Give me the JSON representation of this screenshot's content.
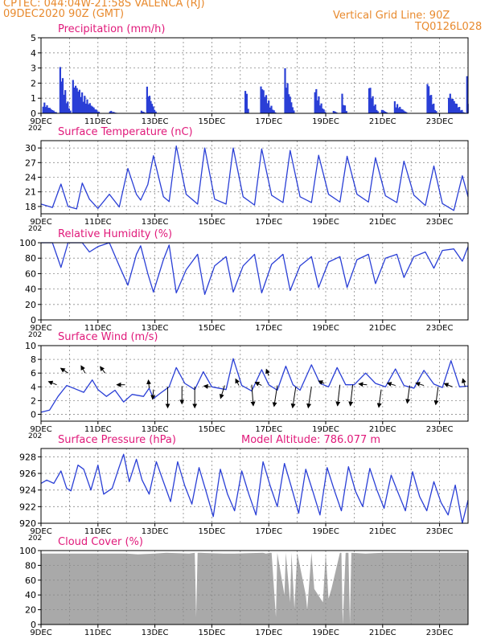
{
  "header": {
    "station": "CPTEC:  044:04W-21:58S  VALENCA (RJ)",
    "date": "09DEC2020 90Z (GMT)",
    "grid_note": "Vertical Grid Line: 90Z",
    "code": "TQ0126L028"
  },
  "colors": {
    "header": "#e88a2e",
    "title": "#e0197a",
    "series": "#2a3fd6",
    "cloud": "#a9a9a9",
    "grid": "#8a8a8a"
  },
  "x_ticks": [
    "9DEC",
    "11DEC",
    "13DEC",
    "15DEC",
    "17DEC",
    "19DEC",
    "21DEC",
    "23DEC"
  ],
  "x_ticks_tick_days": [
    9,
    11,
    13,
    15,
    17,
    19,
    21,
    23
  ],
  "x_range_days": [
    9,
    24.0
  ],
  "cut_label": "202",
  "chart_data": [
    {
      "type": "bar",
      "title": "Precipitation (mm/h)",
      "ylim": [
        0,
        5
      ],
      "yticks": [
        0,
        1,
        2,
        3,
        4,
        5
      ],
      "bursts": [
        {
          "x": [
            9.05,
            9.6
          ],
          "peak": 0.8
        },
        {
          "x": [
            9.65,
            10.05
          ],
          "peak": 3.3
        },
        {
          "x": [
            10.1,
            11.1
          ],
          "peak": 2.3
        },
        {
          "x": [
            11.4,
            11.7
          ],
          "peak": 0.2
        },
        {
          "x": [
            12.5,
            12.7
          ],
          "peak": 0.2
        },
        {
          "x": [
            12.7,
            13.05
          ],
          "peak": 1.8
        },
        {
          "x": [
            16.15,
            16.3
          ],
          "peak": 2.2
        },
        {
          "x": [
            16.7,
            17.25
          ],
          "peak": 2.1
        },
        {
          "x": [
            17.55,
            17.9
          ],
          "peak": 3.0
        },
        {
          "x": [
            18.6,
            19.0
          ],
          "peak": 1.9
        },
        {
          "x": [
            19.25,
            19.45
          ],
          "peak": 0.2
        },
        {
          "x": [
            19.55,
            19.75
          ],
          "peak": 1.3
        },
        {
          "x": [
            20.5,
            20.85
          ],
          "peak": 2.1
        },
        {
          "x": [
            20.95,
            21.2
          ],
          "peak": 0.3
        },
        {
          "x": [
            21.4,
            21.9
          ],
          "peak": 0.8
        },
        {
          "x": [
            22.55,
            22.9
          ],
          "peak": 2.3
        },
        {
          "x": [
            23.3,
            23.9
          ],
          "peak": 1.5
        },
        {
          "x": [
            23.95,
            24.0
          ],
          "peak": 2.5
        }
      ]
    },
    {
      "type": "line",
      "title": "Surface Temperature (nC)",
      "ylim": [
        16.5,
        31.5
      ],
      "yticks": [
        18,
        21,
        24,
        27,
        30
      ],
      "x": [
        9.0,
        9.4,
        9.7,
        9.95,
        10.25,
        10.45,
        10.7,
        11.0,
        11.4,
        11.75,
        12.05,
        12.35,
        12.5,
        12.75,
        12.95,
        13.3,
        13.5,
        13.75,
        14.1,
        14.5,
        14.75,
        15.1,
        15.5,
        15.75,
        16.1,
        16.5,
        16.75,
        17.1,
        17.5,
        17.75,
        18.1,
        18.5,
        18.75,
        19.1,
        19.5,
        19.75,
        20.1,
        20.5,
        20.75,
        21.1,
        21.5,
        21.75,
        22.1,
        22.5,
        22.8,
        23.1,
        23.5,
        23.8,
        24.0
      ],
      "values": [
        18.5,
        17.8,
        22.6,
        18.0,
        17.5,
        22.8,
        19.5,
        17.6,
        20.5,
        17.9,
        25.8,
        20.5,
        19.3,
        22.5,
        28.4,
        20.0,
        19.0,
        30.4,
        20.5,
        18.5,
        30.0,
        19.5,
        18.5,
        30.0,
        20.0,
        18.3,
        29.8,
        20.3,
        18.8,
        29.5,
        20.0,
        18.8,
        28.5,
        20.5,
        18.9,
        28.3,
        20.5,
        18.9,
        28.0,
        20.2,
        18.8,
        27.3,
        20.3,
        18.2,
        26.3,
        18.6,
        17.2,
        24.3,
        20.0
      ]
    },
    {
      "type": "line",
      "title": "Relative Humidity (%)",
      "ylim": [
        0,
        100
      ],
      "yticks": [
        0,
        20,
        40,
        60,
        80,
        100
      ],
      "x": [
        9.0,
        9.4,
        9.7,
        9.95,
        10.25,
        10.45,
        10.7,
        11.0,
        11.4,
        11.75,
        12.05,
        12.35,
        12.5,
        12.75,
        12.95,
        13.3,
        13.5,
        13.75,
        14.1,
        14.5,
        14.75,
        15.1,
        15.5,
        15.75,
        16.1,
        16.5,
        16.75,
        17.1,
        17.5,
        17.75,
        18.1,
        18.5,
        18.75,
        19.1,
        19.5,
        19.75,
        20.1,
        20.5,
        20.75,
        21.1,
        21.5,
        21.75,
        22.1,
        22.5,
        22.8,
        23.1,
        23.5,
        23.8,
        24.0
      ],
      "values": [
        100,
        100,
        68,
        100,
        100,
        100,
        88,
        95,
        100,
        70,
        45,
        85,
        96,
        60,
        36,
        78,
        97,
        35,
        65,
        85,
        33,
        70,
        82,
        36,
        70,
        85,
        35,
        72,
        85,
        38,
        70,
        82,
        42,
        75,
        82,
        42,
        78,
        85,
        47,
        80,
        85,
        55,
        82,
        88,
        67,
        90,
        92,
        76,
        95
      ]
    },
    {
      "type": "line",
      "title": "Surface Wind (m/s)",
      "ylim": [
        -1,
        10
      ],
      "yticks": [
        0,
        2,
        4,
        6,
        8,
        10
      ],
      "x": [
        9.0,
        9.3,
        9.6,
        9.9,
        10.2,
        10.5,
        10.8,
        11.0,
        11.3,
        11.6,
        11.9,
        12.2,
        12.6,
        12.8,
        12.95,
        13.2,
        13.5,
        13.75,
        14.05,
        14.4,
        14.7,
        15.0,
        15.5,
        15.75,
        16.05,
        16.4,
        16.75,
        17.0,
        17.3,
        17.6,
        17.85,
        18.1,
        18.5,
        18.8,
        19.1,
        19.4,
        19.7,
        20.0,
        20.4,
        20.75,
        21.1,
        21.45,
        21.75,
        22.1,
        22.45,
        22.8,
        23.1,
        23.4,
        23.7,
        24.0
      ],
      "values": [
        0.3,
        0.6,
        2.6,
        4.2,
        3.7,
        3.2,
        5.0,
        3.6,
        2.6,
        3.5,
        1.8,
        2.9,
        2.6,
        3.8,
        2.3,
        3.1,
        4.0,
        6.8,
        4.5,
        3.6,
        6.2,
        4.0,
        3.6,
        8.1,
        4.2,
        3.4,
        6.5,
        4.3,
        3.5,
        7.0,
        4.3,
        3.5,
        7.2,
        4.5,
        4.0,
        6.8,
        4.3,
        4.3,
        6.0,
        4.5,
        4.0,
        6.6,
        4.2,
        3.8,
        6.4,
        4.4,
        3.9,
        7.8,
        4.0,
        4.1
      ],
      "arrows": [
        {
          "x": 9.55,
          "y": 4.3,
          "dx": -10,
          "dy": -4
        },
        {
          "x": 9.95,
          "y": 6.0,
          "dx": -9,
          "dy": -6
        },
        {
          "x": 10.55,
          "y": 6.0,
          "dx": -5,
          "dy": -9
        },
        {
          "x": 11.25,
          "y": 6.0,
          "dx": -6,
          "dy": -8
        },
        {
          "x": 11.95,
          "y": 4.3,
          "dx": -10,
          "dy": 0
        },
        {
          "x": 12.8,
          "y": 3.8,
          "dx": -1,
          "dy": -10
        },
        {
          "x": 12.95,
          "y": 3.6,
          "dx": -1,
          "dy": 12
        },
        {
          "x": 13.45,
          "y": 4.0,
          "dx": 0,
          "dy": 26
        },
        {
          "x": 13.95,
          "y": 4.1,
          "dx": 0,
          "dy": 22
        },
        {
          "x": 14.4,
          "y": 4.0,
          "dx": 0,
          "dy": 26
        },
        {
          "x": 14.95,
          "y": 4.0,
          "dx": -8,
          "dy": -1
        },
        {
          "x": 15.45,
          "y": 4.2,
          "dx": -5,
          "dy": 16
        },
        {
          "x": 15.95,
          "y": 4.2,
          "dx": -4,
          "dy": -8
        },
        {
          "x": 16.4,
          "y": 4.3,
          "dx": 2,
          "dy": 26
        },
        {
          "x": 16.75,
          "y": 4.2,
          "dx": -8,
          "dy": -4
        },
        {
          "x": 17.0,
          "y": 5.6,
          "dx": -3,
          "dy": -8
        },
        {
          "x": 17.3,
          "y": 4.2,
          "dx": -4,
          "dy": 26
        },
        {
          "x": 17.95,
          "y": 4.0,
          "dx": -4,
          "dy": 26
        },
        {
          "x": 18.5,
          "y": 4.0,
          "dx": -4,
          "dy": 26
        },
        {
          "x": 18.95,
          "y": 4.5,
          "dx": -7,
          "dy": -3
        },
        {
          "x": 19.5,
          "y": 4.3,
          "dx": -3,
          "dy": 26
        },
        {
          "x": 19.95,
          "y": 4.3,
          "dx": -3,
          "dy": 26
        },
        {
          "x": 20.45,
          "y": 4.3,
          "dx": -10,
          "dy": -1
        },
        {
          "x": 20.95,
          "y": 3.6,
          "dx": -3,
          "dy": 22
        },
        {
          "x": 21.45,
          "y": 4.2,
          "dx": -10,
          "dy": -3
        },
        {
          "x": 21.95,
          "y": 4.2,
          "dx": -3,
          "dy": 22
        },
        {
          "x": 22.45,
          "y": 4.2,
          "dx": -10,
          "dy": -3
        },
        {
          "x": 22.95,
          "y": 4.0,
          "dx": -3,
          "dy": 22
        },
        {
          "x": 23.45,
          "y": 4.0,
          "dx": -10,
          "dy": -4
        },
        {
          "x": 23.9,
          "y": 4.0,
          "dx": -3,
          "dy": -10
        }
      ]
    },
    {
      "type": "line",
      "title": "Surface Pressure (hPa)",
      "subtitle": "Model Altitude: 786.077  m",
      "ylim": [
        920,
        929
      ],
      "yticks": [
        920,
        922,
        924,
        926,
        928
      ],
      "x": [
        9.0,
        9.2,
        9.45,
        9.7,
        9.9,
        10.05,
        10.3,
        10.5,
        10.75,
        11.0,
        11.2,
        11.5,
        11.75,
        11.9,
        12.1,
        12.35,
        12.55,
        12.8,
        13.05,
        13.3,
        13.55,
        13.8,
        14.05,
        14.3,
        14.55,
        14.8,
        15.05,
        15.3,
        15.55,
        15.8,
        16.05,
        16.3,
        16.55,
        16.8,
        17.05,
        17.3,
        17.55,
        17.8,
        18.05,
        18.3,
        18.55,
        18.8,
        19.05,
        19.3,
        19.55,
        19.8,
        20.05,
        20.3,
        20.55,
        20.8,
        21.05,
        21.3,
        21.55,
        21.8,
        22.05,
        22.3,
        22.55,
        22.8,
        23.05,
        23.3,
        23.55,
        23.8,
        24.0
      ],
      "values": [
        924.8,
        925.2,
        924.8,
        926.3,
        924.2,
        923.9,
        927.0,
        926.5,
        924.0,
        927.0,
        923.5,
        924.2,
        926.8,
        928.3,
        925.0,
        927.7,
        925.2,
        923.5,
        927.4,
        925.0,
        922.6,
        927.4,
        924.5,
        922.3,
        926.7,
        923.8,
        920.8,
        926.5,
        923.5,
        921.5,
        926.3,
        923.5,
        921.0,
        927.4,
        924.5,
        922.0,
        927.2,
        924.3,
        921.2,
        926.5,
        923.8,
        921.0,
        926.7,
        924.0,
        921.5,
        926.8,
        923.8,
        922.0,
        926.6,
        924.0,
        921.8,
        925.8,
        923.6,
        921.5,
        926.2,
        923.2,
        921.5,
        925.0,
        922.5,
        921.0,
        924.6,
        920.0,
        922.8
      ]
    },
    {
      "type": "area",
      "title": "Cloud Cover (%)",
      "ylim": [
        0,
        100
      ],
      "yticks": [
        0,
        20,
        40,
        60,
        80,
        100
      ],
      "x": [
        9.0,
        11.5,
        12.0,
        12.4,
        13.0,
        13.4,
        14.2,
        14.4,
        14.45,
        14.5,
        14.6,
        15.4,
        15.8,
        16.8,
        16.9,
        17.05,
        17.1,
        17.25,
        17.3,
        17.55,
        17.6,
        17.75,
        17.8,
        17.9,
        18.0,
        18.3,
        18.35,
        18.5,
        18.6,
        18.9,
        19.0,
        19.1,
        19.2,
        19.5,
        19.55,
        19.6,
        19.7,
        19.8,
        19.85,
        19.9,
        20.4,
        21.0,
        24.0
      ],
      "values": [
        96,
        96,
        96,
        95,
        96,
        97,
        96,
        97,
        10,
        97,
        97,
        96,
        96,
        97,
        96,
        97,
        97,
        10,
        97,
        40,
        97,
        30,
        97,
        22,
        97,
        40,
        20,
        97,
        48,
        30,
        97,
        35,
        48,
        97,
        97,
        0,
        97,
        97,
        0,
        97,
        96,
        97,
        97
      ]
    }
  ]
}
